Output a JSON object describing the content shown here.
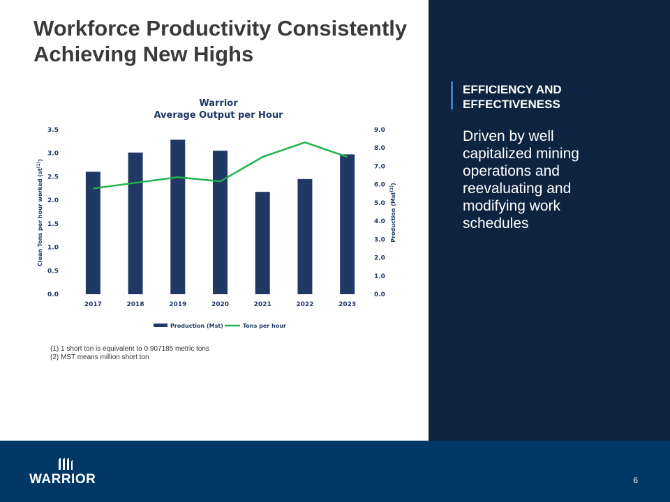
{
  "slide": {
    "title_line1": "Workforce Productivity Consistently",
    "title_line2": "Achieving New Highs",
    "page_number": "6"
  },
  "panel": {
    "heading_line1": "EFFICIENCY AND",
    "heading_line2": "EFFECTIVENESS",
    "body_lines": [
      "Driven by well",
      "capitalized mining",
      "operations and",
      "reevaluating and",
      "modifying work",
      "schedules"
    ]
  },
  "footnotes": {
    "note1": "(1) 1 short ton is equivalent to 0.907185 metric tons",
    "note2": "(2) MST means million short ton"
  },
  "logo": {
    "wordmark": "WARRIOR"
  },
  "colors": {
    "panel": "#0d2340",
    "footer": "#003764",
    "bar": "#1f3864",
    "line": "#22b14c",
    "accent": "#3b82c4"
  },
  "chart_data": {
    "type": "bar",
    "title": "Warrior",
    "subtitle": "Average Output per Hour",
    "categories": [
      "2017",
      "2018",
      "2019",
      "2020",
      "2021",
      "2022",
      "2023"
    ],
    "ylabel_left": "Clean Tons per hour worked (st(1))",
    "ylabel_right": "Production (Mst(2))",
    "left_axis": {
      "ylim": [
        0,
        3.5
      ],
      "ticks": [
        "0.0",
        "0.5",
        "1.0",
        "1.5",
        "2.0",
        "2.5",
        "3.0",
        "3.5"
      ]
    },
    "right_axis": {
      "ylim": [
        0,
        9
      ],
      "ticks": [
        "0.0",
        "1.0",
        "2.0",
        "3.0",
        "4.0",
        "5.0",
        "6.0",
        "7.0",
        "8.0",
        "9.0"
      ]
    },
    "series": [
      {
        "name": "Production (Mst)",
        "type": "bar",
        "axis": "right",
        "values": [
          6.7,
          7.75,
          8.45,
          7.85,
          5.6,
          6.3,
          7.65
        ]
      },
      {
        "name": "Tons per hour",
        "type": "line",
        "axis": "left",
        "values": [
          2.25,
          2.37,
          2.49,
          2.4,
          2.92,
          3.23,
          2.92
        ]
      }
    ],
    "legend_position": "bottom-center",
    "grid": false
  }
}
